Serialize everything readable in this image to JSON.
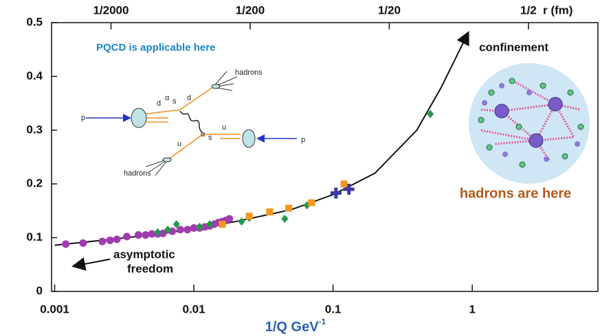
{
  "chart_data": {
    "type": "scatter",
    "xlabel": {
      "text": "1/Q GeV",
      "sup": "-1"
    },
    "x2label": "r (fm)",
    "log_x": true,
    "xlim": [
      0.00095,
      8
    ],
    "xticks": [
      0.001,
      0.01,
      0.1,
      1
    ],
    "x2lim": [
      0.000187,
      1.58
    ],
    "x2ticks": [
      {
        "value": 0.0005,
        "label": "1/2000"
      },
      {
        "value": 0.005,
        "label": "1/200"
      },
      {
        "value": 0.05,
        "label": "1/20"
      },
      {
        "value": 0.5,
        "label": "1/2"
      }
    ],
    "ylim": [
      0,
      0.5
    ],
    "yticks": [
      0,
      0.1,
      0.2,
      0.3,
      0.4,
      0.5
    ],
    "series": [
      {
        "marker": "line",
        "color": "#111111",
        "x": [
          0.001,
          0.002,
          0.005,
          0.01,
          0.02,
          0.05,
          0.1,
          0.2,
          0.4,
          0.6,
          0.93
        ],
        "values": [
          0.086,
          0.094,
          0.105,
          0.116,
          0.13,
          0.152,
          0.18,
          0.22,
          0.3,
          0.38,
          0.48
        ]
      },
      {
        "marker": "circle",
        "color": "#a03cb0",
        "x": [
          0.0012,
          0.0016,
          0.0022,
          0.0025,
          0.0028,
          0.0033,
          0.004,
          0.0045,
          0.005,
          0.0055,
          0.006,
          0.007,
          0.008,
          0.009,
          0.01,
          0.011,
          0.012,
          0.013,
          0.014,
          0.015,
          0.016,
          0.017,
          0.018
        ],
        "values": [
          0.088,
          0.09,
          0.093,
          0.095,
          0.097,
          0.102,
          0.105,
          0.105,
          0.107,
          0.107,
          0.108,
          0.112,
          0.115,
          0.115,
          0.118,
          0.118,
          0.12,
          0.122,
          0.125,
          0.128,
          0.13,
          0.132,
          0.135
        ]
      },
      {
        "marker": "diamond",
        "color": "#1e9a4a",
        "x": [
          0.0055,
          0.0065,
          0.0075,
          0.011,
          0.013,
          0.022,
          0.025,
          0.045,
          0.065,
          0.5
        ],
        "values": [
          0.11,
          0.115,
          0.125,
          0.12,
          0.125,
          0.13,
          0.137,
          0.135,
          0.16,
          0.33
        ]
      },
      {
        "marker": "square",
        "color": "#f5961e",
        "x": [
          0.016,
          0.025,
          0.035,
          0.048,
          0.07,
          0.12
        ],
        "values": [
          0.125,
          0.14,
          0.148,
          0.155,
          0.165,
          0.2
        ]
      },
      {
        "marker": "plus",
        "color": "#3a3aa8",
        "x": [
          0.105,
          0.13
        ],
        "values": [
          0.183,
          0.19
        ]
      }
    ],
    "annotations": {
      "pqcd": "PQCD is applicable here",
      "confinement": "confinement",
      "asymptotic": [
        "asymptotic",
        "freedom"
      ],
      "hadrons_here": "hadrons are here"
    },
    "diagram": {
      "hadrons_top": "hadrons",
      "hadrons_bottom": "hadrons",
      "p_left": "p",
      "p_right": "p",
      "d1": "d",
      "d2": "d",
      "u1": "u",
      "u2": "u",
      "alpha1": "α",
      "alpha2": "α",
      "sub1": "s",
      "sub2": "s"
    }
  }
}
